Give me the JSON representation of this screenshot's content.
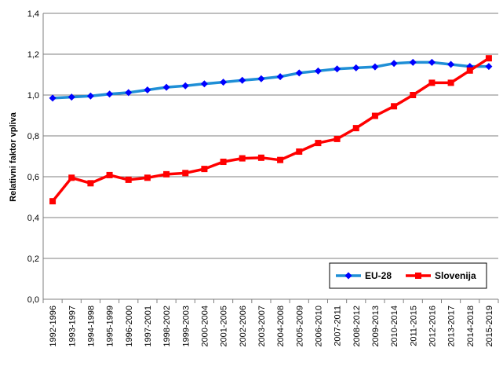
{
  "chart_data": {
    "type": "line",
    "title": "",
    "xlabel": "",
    "ylabel": "Relativni faktor vpliva",
    "ylim": [
      0,
      1.4
    ],
    "y_ticks": [
      "0,0",
      "0,2",
      "0,4",
      "0,6",
      "0,8",
      "1,0",
      "1,2",
      "1,4"
    ],
    "grid": "horizontal",
    "legend_position": "bottom-right",
    "categories": [
      "1992-1996",
      "1993-1997",
      "1994-1998",
      "1995-1999",
      "1996-2000",
      "1997-2001",
      "1998-2002",
      "1999-2003",
      "2000-2004",
      "2001-2005",
      "2002-2006",
      "2003-2007",
      "2004-2008",
      "2005-2009",
      "2006-2010",
      "2007-2011",
      "2008-2012",
      "2009-2013",
      "2010-2014",
      "2011-2015",
      "2012-2016",
      "2013-2017",
      "2014-2018",
      "2015-2019"
    ],
    "series": [
      {
        "name": "EU-28",
        "color": "#1f8fd6",
        "marker_color": "#0000ff",
        "marker": "diamond",
        "values": [
          0.985,
          0.99,
          0.995,
          1.005,
          1.012,
          1.025,
          1.038,
          1.045,
          1.055,
          1.063,
          1.072,
          1.08,
          1.09,
          1.108,
          1.118,
          1.128,
          1.133,
          1.138,
          1.155,
          1.16,
          1.16,
          1.15,
          1.14,
          1.14
        ]
      },
      {
        "name": "Slovenija",
        "color": "#ff0000",
        "marker_color": "#ff0000",
        "marker": "square",
        "values": [
          0.48,
          0.595,
          0.568,
          0.608,
          0.585,
          0.595,
          0.612,
          0.618,
          0.638,
          0.673,
          0.69,
          0.693,
          0.682,
          0.723,
          0.765,
          0.785,
          0.838,
          0.898,
          0.945,
          1.0,
          1.06,
          1.06,
          1.12,
          1.18
        ]
      }
    ]
  }
}
